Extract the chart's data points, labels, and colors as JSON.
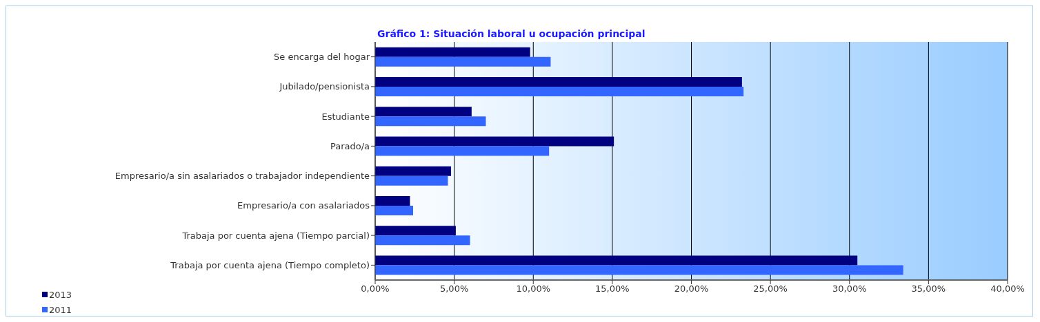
{
  "chart_data": {
    "type": "bar",
    "orientation": "horizontal",
    "title": "Gráfico 1: Situación laboral u ocupación principal",
    "categories": [
      "Se encarga del hogar",
      "Jubilado/pensionista",
      "Estudiante",
      "Parado/a",
      "Empresario/a sin asalariados o trabajador independiente",
      "Empresario/a con asalariados",
      "Trabaja por cuenta ajena (Tiempo parcial)",
      "Trabaja por cuenta ajena (Tiempo completo)"
    ],
    "series": [
      {
        "name": "2013",
        "color": "#000080",
        "values": [
          9.8,
          23.2,
          6.1,
          15.1,
          4.8,
          2.2,
          5.1,
          30.5
        ]
      },
      {
        "name": "2011",
        "color": "#3366ff",
        "values": [
          11.1,
          23.3,
          7.0,
          11.0,
          4.6,
          2.4,
          6.0,
          33.4
        ]
      }
    ],
    "xlim": [
      0,
      40
    ],
    "xticks": [
      {
        "value": 0,
        "label": "0,00%"
      },
      {
        "value": 5,
        "label": "5,00%"
      },
      {
        "value": 10,
        "label": "10,00%"
      },
      {
        "value": 15,
        "label": "15,00%"
      },
      {
        "value": 20,
        "label": "20,00%"
      },
      {
        "value": 25,
        "label": "25,00%"
      },
      {
        "value": 30,
        "label": "30,00%"
      },
      {
        "value": 35,
        "label": "35,00%"
      },
      {
        "value": 40,
        "label": "40,00%"
      }
    ],
    "grid": "x",
    "legend": "bottom left"
  }
}
